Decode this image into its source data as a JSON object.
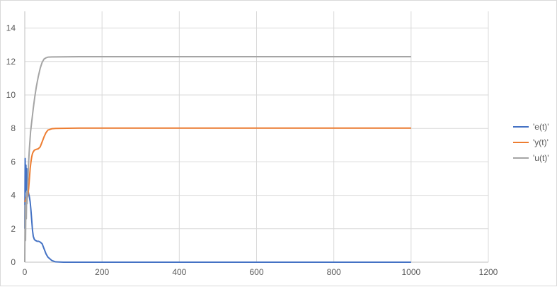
{
  "chart_data": {
    "type": "line",
    "title": "",
    "xlabel": "",
    "ylabel": "",
    "xlim": [
      0,
      1200
    ],
    "ylim": [
      0,
      15
    ],
    "x_ticks": [
      0,
      200,
      400,
      600,
      800,
      1000,
      1200
    ],
    "y_ticks": [
      0,
      2,
      4,
      6,
      8,
      10,
      12,
      14
    ],
    "grid": true,
    "legend_position": "right",
    "series": [
      {
        "name": "'e(t)'",
        "color": "#4472c4",
        "points": [
          [
            0,
            2
          ],
          [
            1,
            6.2
          ],
          [
            2,
            4.2
          ],
          [
            3,
            5.8
          ],
          [
            4,
            4.3
          ],
          [
            5,
            5.6
          ],
          [
            6,
            4.3
          ],
          [
            7,
            4.6
          ],
          [
            8,
            4.4
          ],
          [
            10,
            4.1
          ],
          [
            12,
            3.9
          ],
          [
            14,
            3.6
          ],
          [
            16,
            3.1
          ],
          [
            18,
            2.5
          ],
          [
            20,
            1.9
          ],
          [
            22,
            1.55
          ],
          [
            25,
            1.35
          ],
          [
            28,
            1.3
          ],
          [
            32,
            1.25
          ],
          [
            36,
            1.25
          ],
          [
            40,
            1.2
          ],
          [
            45,
            1.1
          ],
          [
            50,
            0.8
          ],
          [
            55,
            0.5
          ],
          [
            60,
            0.3
          ],
          [
            70,
            0.1
          ],
          [
            80,
            0.02
          ],
          [
            100,
            0
          ],
          [
            1000,
            0
          ]
        ]
      },
      {
        "name": "'y(t)'",
        "color": "#ed7d31",
        "points": [
          [
            0,
            3.6
          ],
          [
            2,
            3.7
          ],
          [
            4,
            3.9
          ],
          [
            6,
            3.8
          ],
          [
            8,
            4.0
          ],
          [
            10,
            4.4
          ],
          [
            12,
            5.0
          ],
          [
            14,
            5.6
          ],
          [
            16,
            6.0
          ],
          [
            18,
            6.3
          ],
          [
            20,
            6.5
          ],
          [
            22,
            6.6
          ],
          [
            25,
            6.7
          ],
          [
            30,
            6.75
          ],
          [
            35,
            6.78
          ],
          [
            40,
            6.9
          ],
          [
            45,
            7.2
          ],
          [
            50,
            7.5
          ],
          [
            55,
            7.75
          ],
          [
            60,
            7.9
          ],
          [
            70,
            7.98
          ],
          [
            80,
            8.0
          ],
          [
            140,
            8.02
          ],
          [
            1000,
            8.02
          ]
        ]
      },
      {
        "name": "'u(t)'",
        "color": "#a5a5a5",
        "points": [
          [
            0,
            0
          ],
          [
            1,
            3.4
          ],
          [
            2,
            1.3
          ],
          [
            3,
            3.6
          ],
          [
            4,
            2.6
          ],
          [
            5,
            4.2
          ],
          [
            6,
            3.5
          ],
          [
            8,
            4.8
          ],
          [
            10,
            6.0
          ],
          [
            12,
            6.8
          ],
          [
            15,
            7.8
          ],
          [
            18,
            8.4
          ],
          [
            22,
            9.2
          ],
          [
            26,
            9.9
          ],
          [
            30,
            10.5
          ],
          [
            35,
            11.1
          ],
          [
            40,
            11.6
          ],
          [
            45,
            11.95
          ],
          [
            50,
            12.15
          ],
          [
            55,
            12.22
          ],
          [
            60,
            12.26
          ],
          [
            70,
            12.27
          ],
          [
            140,
            12.29
          ],
          [
            1000,
            12.29
          ]
        ]
      }
    ]
  }
}
